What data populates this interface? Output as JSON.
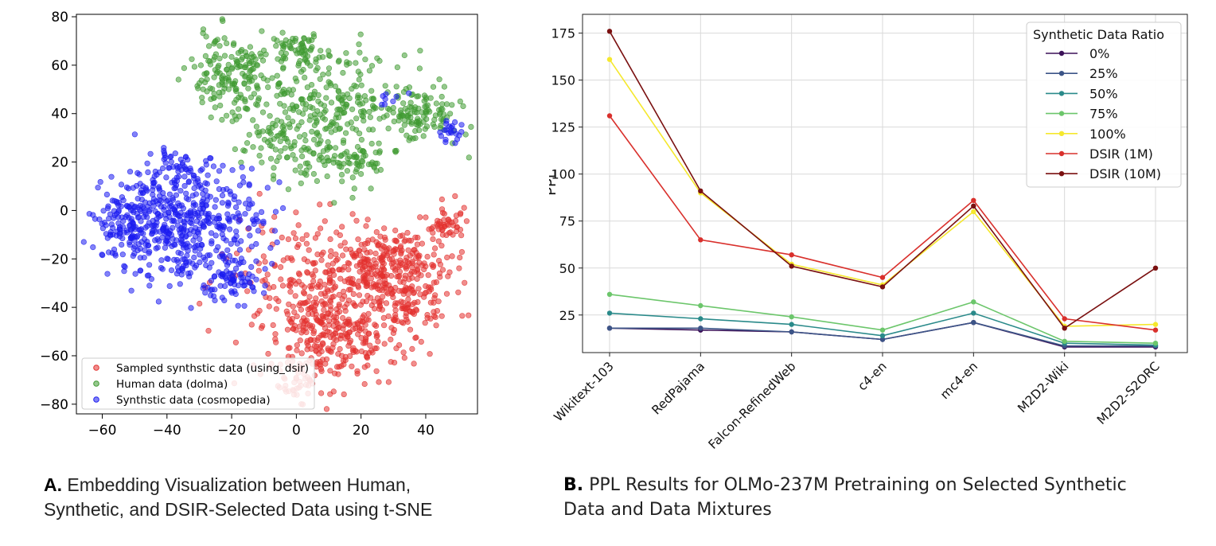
{
  "charts": {
    "tsne": {
      "caption": {
        "label": "A.",
        "bold_word": "Embedding",
        "rest_line1": "Visualization between Human,",
        "line2": "Synthetic, and DSIR-Selected Data using t-SNE"
      }
    },
    "ppl": {
      "caption": {
        "label": "B.",
        "bold_word": "PPL",
        "rest_line1": "Results for OLMo-237M Pretraining on Selected Synthetic",
        "line2": "Data and Data Mixtures"
      }
    }
  },
  "chart_data": [
    {
      "type": "scatter",
      "title": "",
      "xlabel": "",
      "ylabel": "",
      "xlim": [
        -68,
        56
      ],
      "ylim": [
        -84,
        81
      ],
      "xticks": [
        -60,
        -40,
        -20,
        0,
        20,
        40
      ],
      "yticks": [
        -80,
        -60,
        -40,
        -20,
        0,
        20,
        40,
        60,
        80
      ],
      "xtick_labels": [
        "−60",
        "−40",
        "−20",
        "0",
        "20",
        "40"
      ],
      "ytick_labels": [
        "−80",
        "−60",
        "−40",
        "−20",
        "0",
        "20",
        "40",
        "60",
        "80"
      ],
      "grid": false,
      "legend_position": "bottom-left",
      "series": [
        {
          "name": "Sampled synthstic data (using_dsir)",
          "color": "#e3312f",
          "clusters": [
            {
              "cx": 30,
              "cy": -25,
              "sx": 9,
              "sy": 9,
              "n": 300
            },
            {
              "cx": 12,
              "cy": -50,
              "sx": 12,
              "sy": 11,
              "n": 320
            },
            {
              "cx": 5,
              "cy": -25,
              "sx": 12,
              "sy": 12,
              "n": 160
            },
            {
              "cx": 46,
              "cy": -5,
              "sx": 3,
              "sy": 3,
              "n": 45
            },
            {
              "cx": 0,
              "cy": -72,
              "sx": 4,
              "sy": 4,
              "n": 35
            },
            {
              "cx": 35,
              "cy": -42,
              "sx": 4,
              "sy": 4,
              "n": 40
            }
          ]
        },
        {
          "name": "Human data (dolma)",
          "color": "#3f9a32",
          "clusters": [
            {
              "cx": -20,
              "cy": 55,
              "sx": 7,
              "sy": 9,
              "n": 170
            },
            {
              "cx": 0,
              "cy": 67,
              "sx": 4,
              "sy": 3,
              "n": 60
            },
            {
              "cx": 10,
              "cy": 45,
              "sx": 12,
              "sy": 10,
              "n": 220
            },
            {
              "cx": 38,
              "cy": 40,
              "sx": 6,
              "sy": 6,
              "n": 110
            },
            {
              "cx": 15,
              "cy": 20,
              "sx": 8,
              "sy": 6,
              "n": 90
            },
            {
              "cx": -5,
              "cy": 28,
              "sx": 6,
              "sy": 8,
              "n": 70
            }
          ]
        },
        {
          "name": "Synthstic data (cosmopedia)",
          "color": "#1c1cf0",
          "clusters": [
            {
              "cx": -35,
              "cy": -5,
              "sx": 12,
              "sy": 12,
              "n": 540
            },
            {
              "cx": -55,
              "cy": -5,
              "sx": 4,
              "sy": 6,
              "n": 60
            },
            {
              "cx": -20,
              "cy": -30,
              "sx": 5,
              "sy": 4,
              "n": 60
            },
            {
              "cx": -38,
              "cy": 18,
              "sx": 3,
              "sy": 3,
              "n": 30
            },
            {
              "cx": 47,
              "cy": 33,
              "sx": 2,
              "sy": 2,
              "n": 22
            },
            {
              "cx": 30,
              "cy": 46,
              "sx": 3,
              "sy": 2,
              "n": 8
            }
          ]
        }
      ]
    },
    {
      "type": "line",
      "title": "",
      "xlabel": "",
      "ylabel": "PPL",
      "ylim": [
        5,
        185
      ],
      "yticks": [
        25,
        50,
        75,
        100,
        125,
        150,
        175
      ],
      "grid": true,
      "legend_title": "Synthetic Data Ratio",
      "legend_position": "top-right",
      "categories": [
        "Wikitext-103",
        "RedPajama",
        "Falcon-RefinedWeb",
        "c4-en",
        "mc4-en",
        "M2D2-Wiki",
        "M2D2-S2ORC"
      ],
      "series": [
        {
          "name": "0%",
          "color": "#3b1158",
          "values": [
            18,
            17,
            16,
            12,
            21,
            8,
            8
          ]
        },
        {
          "name": "25%",
          "color": "#3c5487",
          "values": [
            18,
            18,
            16,
            12,
            21,
            8.5,
            8.5
          ]
        },
        {
          "name": "50%",
          "color": "#2a8a8a",
          "values": [
            26,
            23,
            20,
            14,
            26,
            10,
            9
          ]
        },
        {
          "name": "75%",
          "color": "#6cc66b",
          "values": [
            36,
            30,
            24,
            17,
            32,
            11,
            10
          ]
        },
        {
          "name": "100%",
          "color": "#f5e82d",
          "values": [
            161,
            90,
            52,
            41,
            80,
            19,
            20
          ]
        },
        {
          "name": "DSIR (1M)",
          "color": "#d9302c",
          "values": [
            131,
            65,
            57,
            45,
            86,
            23,
            17
          ]
        },
        {
          "name": "DSIR (10M)",
          "color": "#7a1010",
          "values": [
            176,
            91,
            51,
            40,
            83,
            18,
            50
          ]
        }
      ]
    }
  ]
}
